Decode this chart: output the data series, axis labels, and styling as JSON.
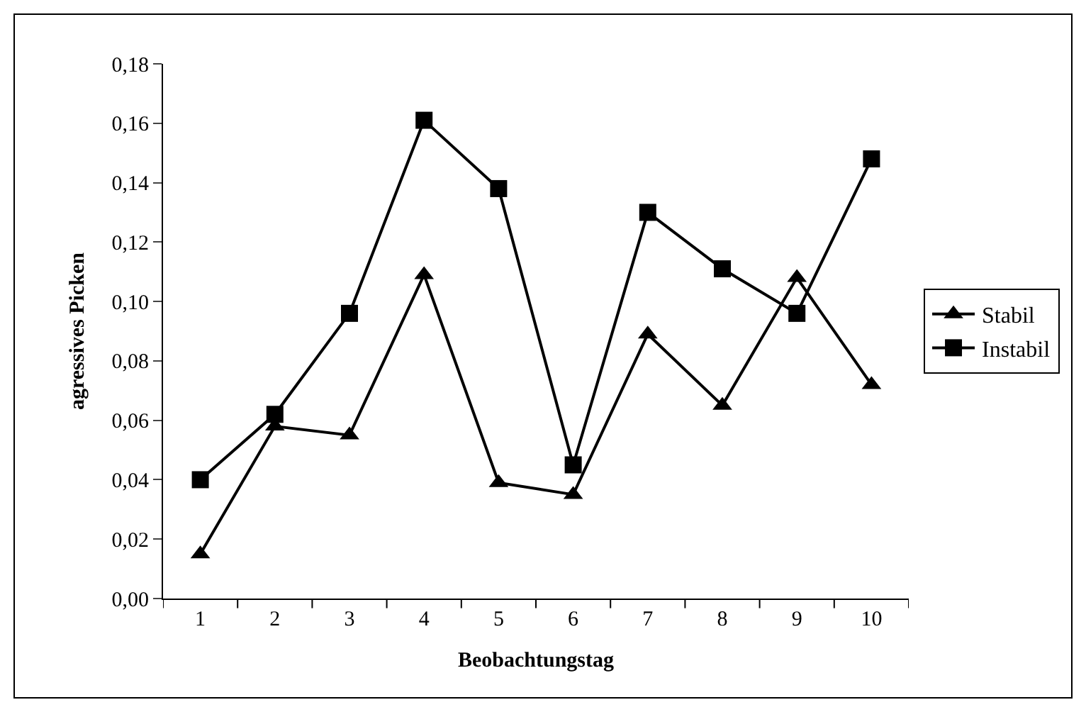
{
  "chart_data": {
    "type": "line",
    "xlabel": "Beobachtungstag",
    "ylabel": "agressives Picken",
    "categories": [
      "1",
      "2",
      "3",
      "4",
      "5",
      "6",
      "7",
      "8",
      "9",
      "10"
    ],
    "series": [
      {
        "name": "Stabil",
        "color": "#000000",
        "marker": "triangle",
        "values": [
          0.015,
          0.058,
          0.055,
          0.109,
          0.039,
          0.035,
          0.089,
          0.065,
          0.108,
          0.072
        ]
      },
      {
        "name": "Instabil",
        "color": "#000000",
        "marker": "square",
        "values": [
          0.04,
          0.062,
          0.096,
          0.161,
          0.138,
          0.045,
          0.13,
          0.111,
          0.096,
          0.148
        ]
      }
    ],
    "ylim": [
      0,
      0.18
    ],
    "yticks": [
      {
        "value": 0,
        "label": "0,00"
      },
      {
        "value": 0.02,
        "label": "0,02"
      },
      {
        "value": 0.04,
        "label": "0,04"
      },
      {
        "value": 0.06,
        "label": "0,06"
      },
      {
        "value": 0.08,
        "label": "0,08"
      },
      {
        "value": 0.1,
        "label": "0,10"
      },
      {
        "value": 0.12,
        "label": "0,12"
      },
      {
        "value": 0.14,
        "label": "0,14"
      },
      {
        "value": 0.16,
        "label": "0,16"
      },
      {
        "value": 0.18,
        "label": "0,18"
      }
    ],
    "legend": "right",
    "line_style": "solid"
  }
}
